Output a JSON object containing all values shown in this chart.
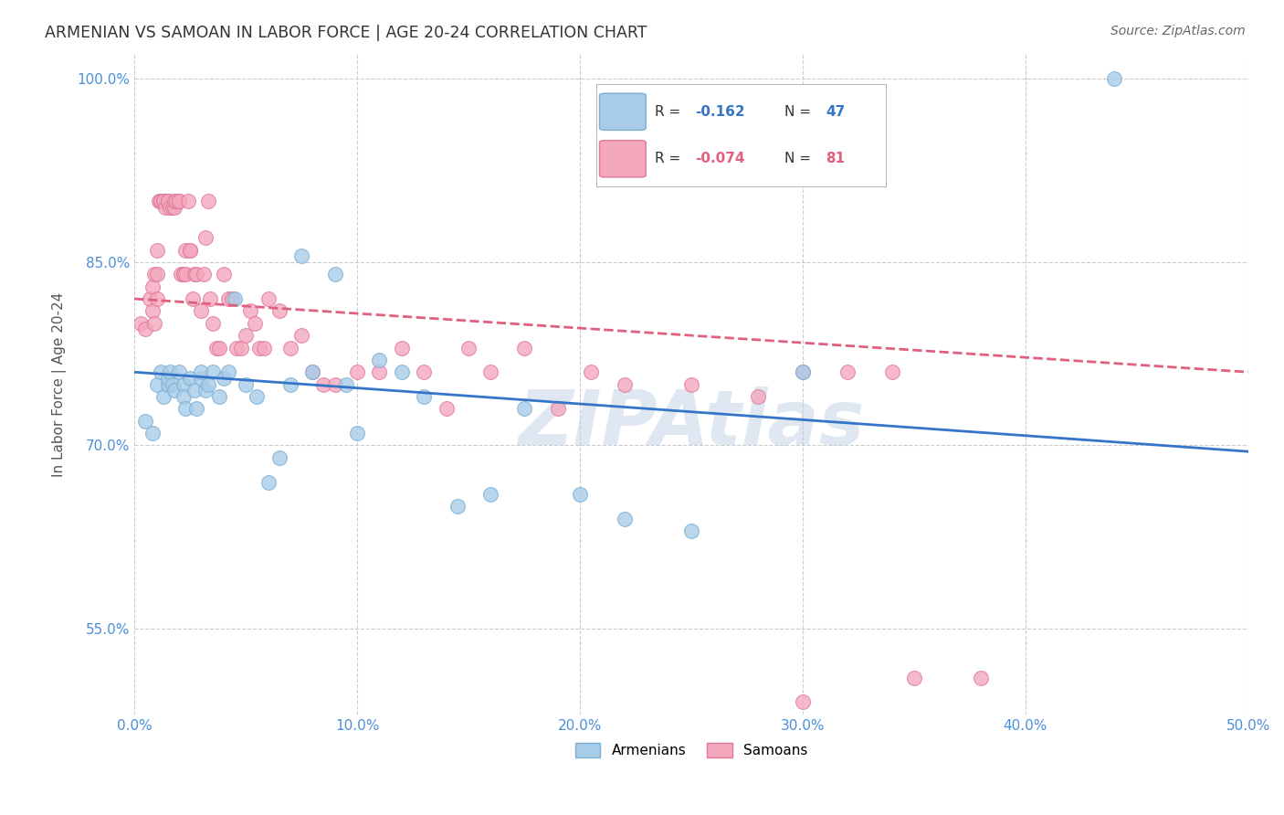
{
  "title": "ARMENIAN VS SAMOAN IN LABOR FORCE | AGE 20-24 CORRELATION CHART",
  "source": "Source: ZipAtlas.com",
  "ylabel": "In Labor Force | Age 20-24",
  "xlim": [
    0.0,
    0.5
  ],
  "ylim": [
    0.48,
    1.02
  ],
  "xticks": [
    0.0,
    0.1,
    0.2,
    0.3,
    0.4,
    0.5
  ],
  "xtick_labels": [
    "0.0%",
    "10.0%",
    "20.0%",
    "30.0%",
    "40.0%",
    "50.0%"
  ],
  "yticks": [
    0.55,
    0.7,
    0.85,
    1.0
  ],
  "ytick_labels": [
    "55.0%",
    "70.0%",
    "85.0%",
    "100.0%"
  ],
  "armenian_color": "#a8cce8",
  "samoan_color": "#f4a8be",
  "armenian_edge": "#7aaed4",
  "samoan_edge": "#e07898",
  "trendline_armenian_color": "#3575c8",
  "trendline_samoan_color": "#e06080",
  "watermark": "ZIPAtlas",
  "background_color": "#ffffff",
  "grid_color": "#cccccc",
  "armenian_x": [
    0.005,
    0.008,
    0.01,
    0.012,
    0.013,
    0.015,
    0.015,
    0.016,
    0.017,
    0.018,
    0.02,
    0.022,
    0.022,
    0.023,
    0.025,
    0.027,
    0.028,
    0.03,
    0.03,
    0.032,
    0.033,
    0.035,
    0.038,
    0.04,
    0.042,
    0.045,
    0.05,
    0.055,
    0.06,
    0.065,
    0.07,
    0.075,
    0.08,
    0.09,
    0.095,
    0.1,
    0.11,
    0.12,
    0.13,
    0.145,
    0.16,
    0.175,
    0.2,
    0.22,
    0.25,
    0.3,
    0.44
  ],
  "armenian_y": [
    0.72,
    0.71,
    0.75,
    0.76,
    0.74,
    0.75,
    0.755,
    0.76,
    0.75,
    0.745,
    0.76,
    0.75,
    0.74,
    0.73,
    0.755,
    0.745,
    0.73,
    0.755,
    0.76,
    0.745,
    0.75,
    0.76,
    0.74,
    0.755,
    0.76,
    0.82,
    0.75,
    0.74,
    0.67,
    0.69,
    0.75,
    0.855,
    0.76,
    0.84,
    0.75,
    0.71,
    0.77,
    0.76,
    0.74,
    0.65,
    0.66,
    0.73,
    0.66,
    0.64,
    0.63,
    0.76,
    1.0
  ],
  "samoan_x": [
    0.003,
    0.005,
    0.007,
    0.008,
    0.008,
    0.009,
    0.009,
    0.01,
    0.01,
    0.01,
    0.011,
    0.012,
    0.012,
    0.013,
    0.013,
    0.014,
    0.015,
    0.015,
    0.015,
    0.016,
    0.017,
    0.018,
    0.018,
    0.019,
    0.02,
    0.02,
    0.021,
    0.022,
    0.022,
    0.023,
    0.023,
    0.024,
    0.025,
    0.025,
    0.026,
    0.027,
    0.028,
    0.03,
    0.031,
    0.032,
    0.033,
    0.034,
    0.035,
    0.037,
    0.038,
    0.04,
    0.042,
    0.044,
    0.046,
    0.048,
    0.05,
    0.052,
    0.054,
    0.056,
    0.058,
    0.06,
    0.065,
    0.07,
    0.075,
    0.08,
    0.085,
    0.09,
    0.1,
    0.11,
    0.12,
    0.13,
    0.14,
    0.15,
    0.16,
    0.175,
    0.19,
    0.205,
    0.22,
    0.25,
    0.28,
    0.3,
    0.32,
    0.34,
    0.35,
    0.38,
    0.3
  ],
  "samoan_y": [
    0.8,
    0.795,
    0.82,
    0.81,
    0.83,
    0.8,
    0.84,
    0.82,
    0.84,
    0.86,
    0.9,
    0.9,
    0.9,
    0.9,
    0.9,
    0.895,
    0.9,
    0.9,
    0.9,
    0.895,
    0.895,
    0.895,
    0.9,
    0.9,
    0.9,
    0.9,
    0.84,
    0.84,
    0.84,
    0.84,
    0.86,
    0.9,
    0.86,
    0.86,
    0.82,
    0.84,
    0.84,
    0.81,
    0.84,
    0.87,
    0.9,
    0.82,
    0.8,
    0.78,
    0.78,
    0.84,
    0.82,
    0.82,
    0.78,
    0.78,
    0.79,
    0.81,
    0.8,
    0.78,
    0.78,
    0.82,
    0.81,
    0.78,
    0.79,
    0.76,
    0.75,
    0.75,
    0.76,
    0.76,
    0.78,
    0.76,
    0.73,
    0.78,
    0.76,
    0.78,
    0.73,
    0.76,
    0.75,
    0.75,
    0.74,
    0.76,
    0.76,
    0.76,
    0.51,
    0.51,
    0.49
  ],
  "arm_trend_x0": 0.0,
  "arm_trend_y0": 0.76,
  "arm_trend_x1": 0.5,
  "arm_trend_y1": 0.695,
  "sam_trend_x0": 0.0,
  "sam_trend_y0": 0.82,
  "sam_trend_x1": 0.5,
  "sam_trend_y1": 0.76
}
